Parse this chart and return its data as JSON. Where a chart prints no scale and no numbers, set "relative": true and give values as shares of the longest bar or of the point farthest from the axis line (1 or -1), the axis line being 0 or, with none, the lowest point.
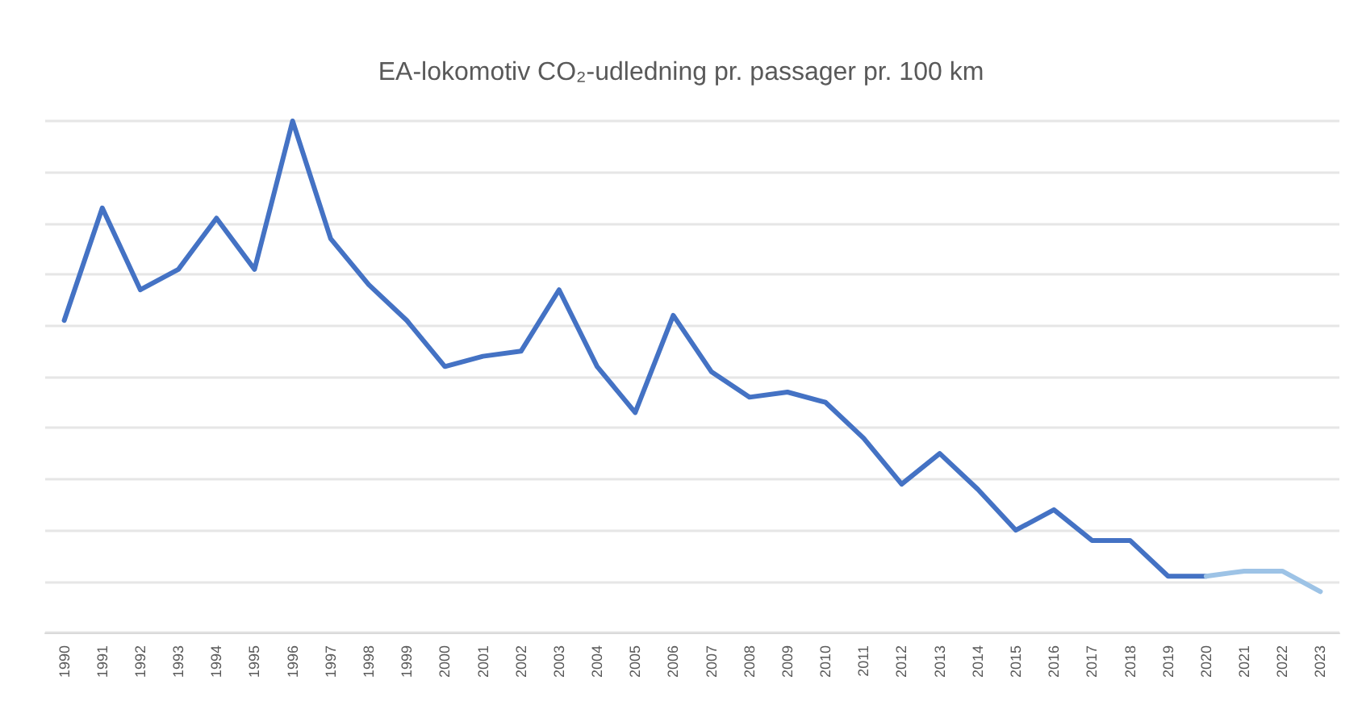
{
  "chart_data": {
    "type": "line",
    "title": "EA-lokomotiv CO₂-udledning pr. passager pr. 100 km",
    "relative": true,
    "grid": "y",
    "marker": "none",
    "line_style": "solid",
    "categories": [
      "1990",
      "1991",
      "1992",
      "1993",
      "1994",
      "1995",
      "1996",
      "1997",
      "1998",
      "1999",
      "2000",
      "2001",
      "2002",
      "2003",
      "2004",
      "2005",
      "2006",
      "2007",
      "2008",
      "2009",
      "2010",
      "2011",
      "2012",
      "2013",
      "2014",
      "2015",
      "2016",
      "2017",
      "2018",
      "2019",
      "2020",
      "2021",
      "2022",
      "2023"
    ],
    "series": [
      {
        "color": "#4472c4",
        "values": [
          0.61,
          0.83,
          0.67,
          0.71,
          0.81,
          0.71,
          1,
          0.77,
          0.68,
          0.61,
          0.52,
          0.54,
          0.55,
          0.67,
          0.52,
          0.43,
          0.62,
          0.51,
          0.46,
          0.47,
          0.45,
          0.38,
          0.29,
          0.35,
          0.28,
          0.2,
          0.24,
          0.18,
          0.18,
          0.11,
          0.11,
          null,
          null,
          null
        ]
      },
      {
        "color": "#9dc3e6",
        "values": [
          null,
          null,
          null,
          null,
          null,
          null,
          null,
          null,
          null,
          null,
          null,
          null,
          null,
          null,
          null,
          null,
          null,
          null,
          null,
          null,
          null,
          null,
          null,
          null,
          null,
          null,
          null,
          null,
          null,
          null,
          0.11,
          0.12,
          0.12,
          0.08
        ]
      }
    ]
  }
}
